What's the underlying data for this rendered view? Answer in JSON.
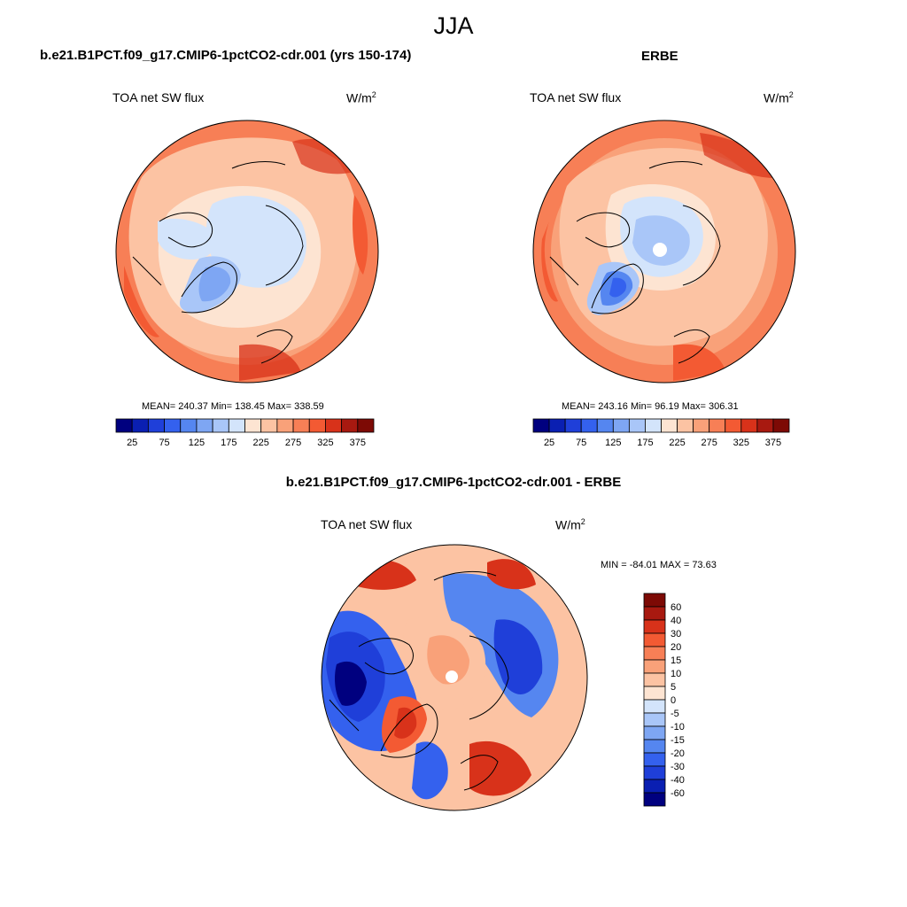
{
  "page_title": "JJA",
  "chart_data": [
    {
      "type": "heatmap",
      "projection": "north polar stereographic",
      "title": "b.e21.B1PCT.f09_g17.CMIP6-1pctCO2-cdr.001 (yrs 150-174)",
      "variable": "TOA net SW flux",
      "units": "W/m",
      "units_exponent": "2",
      "stats": {
        "mean": "240.37",
        "min": "138.45",
        "max": "338.59"
      },
      "stats_text": "MEAN= 240.37  Min= 138.45  Max= 338.59",
      "colorbar_levels": [
        25,
        50,
        75,
        100,
        125,
        150,
        175,
        200,
        225,
        250,
        275,
        300,
        325,
        350,
        375
      ],
      "colorbar_tick_labels": [
        "25",
        "75",
        "125",
        "175",
        "225",
        "275",
        "325",
        "375"
      ],
      "colorbar_colors": [
        "#00007f",
        "#0a1fb2",
        "#1f3fd9",
        "#3461ee",
        "#5586f0",
        "#7ea6f3",
        "#a9c6f8",
        "#d3e4fb",
        "#fde4d2",
        "#fcc3a3",
        "#f9a179",
        "#f77f56",
        "#f35a33",
        "#d8321a",
        "#a81910",
        "#7d0a05"
      ],
      "field": "polar cap ~175 over sea ice, ~150 over Greenland, 225-300 over midlatitudes, 300-338 over subtropical land"
    },
    {
      "type": "heatmap",
      "projection": "north polar stereographic",
      "title": "ERBE",
      "variable": "TOA net SW flux",
      "units": "W/m",
      "units_exponent": "2",
      "stats": {
        "mean": "243.16",
        "min": "96.19",
        "max": "306.31"
      },
      "stats_text": "MEAN= 243.16  Min=  96.19  Max= 306.31",
      "colorbar_levels": [
        25,
        50,
        75,
        100,
        125,
        150,
        175,
        200,
        225,
        250,
        275,
        300,
        325,
        350,
        375
      ],
      "colorbar_tick_labels": [
        "25",
        "75",
        "125",
        "175",
        "225",
        "275",
        "325",
        "375"
      ],
      "colorbar_colors": [
        "#00007f",
        "#0a1fb2",
        "#1f3fd9",
        "#3461ee",
        "#5586f0",
        "#7ea6f3",
        "#a9c6f8",
        "#d3e4fb",
        "#fde4d2",
        "#fcc3a3",
        "#f9a179",
        "#f77f56",
        "#f35a33",
        "#d8321a",
        "#a81910",
        "#7d0a05"
      ],
      "field": "polar cap ~175-200 with missing data at pole, Greenland ~100-150, 250-306 over midlatitudes"
    },
    {
      "type": "heatmap",
      "projection": "north polar stereographic",
      "title": "b.e21.B1PCT.f09_g17.CMIP6-1pctCO2-cdr.001 - ERBE",
      "variable": "TOA net SW flux",
      "units": "W/m",
      "units_exponent": "2",
      "stats": {
        "min": "-84.01",
        "max": "73.63"
      },
      "stats_text": "MIN = -84.01 MAX =  73.63",
      "colorbar_levels": [
        -60,
        -40,
        -30,
        -20,
        -15,
        -10,
        -5,
        0,
        5,
        10,
        15,
        20,
        30,
        40,
        60
      ],
      "colorbar_tick_labels": [
        "60",
        "40",
        "30",
        "20",
        "15",
        "10",
        "5",
        "0",
        "-5",
        "-10",
        "-15",
        "-20",
        "-30",
        "-40",
        "-60"
      ],
      "colorbar_colors": [
        "#7d0a05",
        "#a81910",
        "#d8321a",
        "#f35a33",
        "#f77f56",
        "#f9a179",
        "#fcc3a3",
        "#fde4d2",
        "#d3e4fb",
        "#a9c6f8",
        "#7ea6f3",
        "#5586f0",
        "#3461ee",
        "#1f3fd9",
        "#0a1fb2",
        "#00007f"
      ],
      "field": "strong negative (-40 to -84) over N. America, Siberia and N. Atlantic; positive (+20 to +73) over Arctic ocean, Greenland rim, Europe and N. Pacific"
    }
  ]
}
